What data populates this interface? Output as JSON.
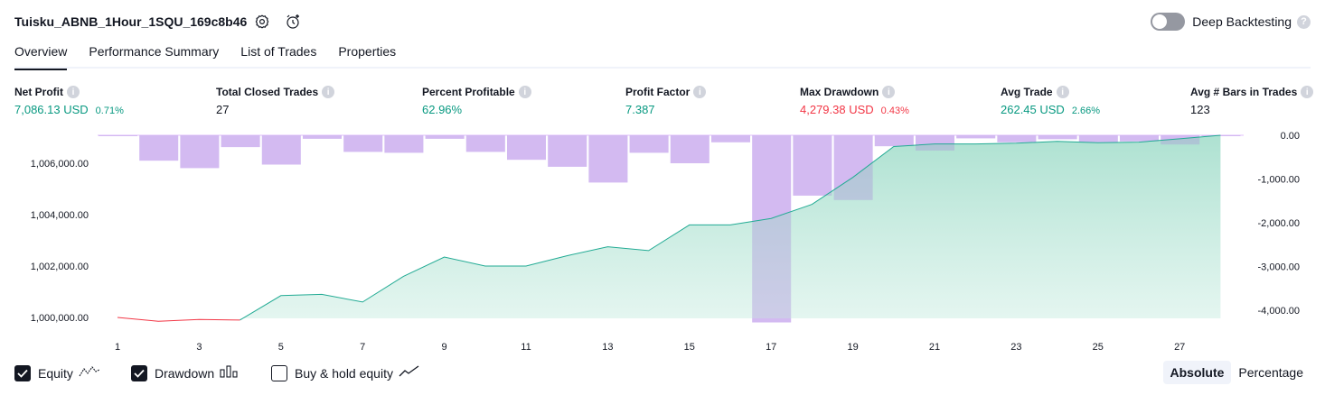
{
  "header": {
    "title": "Tuisku_ABNB_1Hour_1SQU_169c8b46",
    "settings_icon": "settings-gear-icon",
    "alert_icon": "add-alert-clock-icon",
    "deep_backtesting_label": "Deep Backtesting",
    "deep_backtesting_enabled": false,
    "help": "?"
  },
  "tabs": [
    {
      "label": "Overview",
      "active": true
    },
    {
      "label": "Performance Summary",
      "active": false
    },
    {
      "label": "List of Trades",
      "active": false
    },
    {
      "label": "Properties",
      "active": false
    }
  ],
  "metrics": [
    {
      "label": "Net Profit",
      "value": "7,086.13 USD",
      "pct": "0.71%",
      "tone": "pos"
    },
    {
      "label": "Total Closed Trades",
      "value": "27",
      "pct": "",
      "tone": "neu"
    },
    {
      "label": "Percent Profitable",
      "value": "62.96%",
      "pct": "",
      "tone": "pos"
    },
    {
      "label": "Profit Factor",
      "value": "7.387",
      "pct": "",
      "tone": "pos"
    },
    {
      "label": "Max Drawdown",
      "value": "4,279.38 USD",
      "pct": "0.43%",
      "tone": "neg"
    },
    {
      "label": "Avg Trade",
      "value": "262.45 USD",
      "pct": "2.66%",
      "tone": "pos"
    },
    {
      "label": "Avg # Bars in Trades",
      "value": "123",
      "pct": "",
      "tone": "neu"
    }
  ],
  "legend": {
    "equity_label": "Equity",
    "equity_checked": true,
    "drawdown_label": "Drawdown",
    "drawdown_checked": true,
    "buyhold_label": "Buy & hold equity",
    "buyhold_checked": false
  },
  "scale": {
    "absolute_label": "Absolute",
    "percentage_label": "Percentage",
    "active": "absolute"
  },
  "colors": {
    "equity_up": "#22ab94",
    "equity_down": "#f23645",
    "equity_fill": "#bfe9dd",
    "drawdown_bar": "#e1bffe"
  },
  "chart_data": {
    "type": "line",
    "x": [
      1,
      2,
      3,
      4,
      5,
      6,
      7,
      8,
      9,
      10,
      11,
      12,
      13,
      14,
      15,
      16,
      17,
      18,
      19,
      20,
      21,
      22,
      23,
      24,
      25,
      26,
      27,
      28
    ],
    "x_tick_labels": [
      "1",
      "3",
      "5",
      "7",
      "9",
      "11",
      "13",
      "15",
      "17",
      "19",
      "21",
      "23",
      "25",
      "27"
    ],
    "x_tick_values": [
      1,
      3,
      5,
      7,
      9,
      11,
      13,
      15,
      17,
      19,
      21,
      23,
      25,
      27
    ],
    "left_axis": {
      "ylim": [
        999500,
        1007100
      ],
      "tick_values": [
        1000000,
        1002000,
        1004000,
        1006000
      ],
      "tick_labels": [
        "1,000,000.00",
        "1,002,000.00",
        "1,004,000.00",
        "1,006,000.00"
      ]
    },
    "right_axis": {
      "ylim": [
        -4350,
        0
      ],
      "tick_values": [
        0,
        -1000,
        -2000,
        -3000,
        -4000
      ],
      "tick_labels": [
        "0.00",
        "-1,000.00",
        "-2,000.00",
        "-3,000.00",
        "-4,000.00"
      ]
    },
    "series": [
      {
        "name": "Equity",
        "values": [
          1000000,
          999850,
          999920,
          999900,
          1000850,
          1000900,
          1000600,
          1001600,
          1002350,
          1002000,
          1002000,
          1002400,
          1002750,
          1002600,
          1003600,
          1003600,
          1003850,
          1004400,
          1005450,
          1006650,
          1006750,
          1006750,
          1006780,
          1006850,
          1006800,
          1006820,
          1006950,
          1007086
        ]
      },
      {
        "name": "Drawdown",
        "values": [
          -20,
          -580,
          -750,
          -270,
          -670,
          -80,
          -380,
          -400,
          -80,
          -380,
          -560,
          -720,
          -1080,
          -400,
          -640,
          -160,
          -4279,
          -1380,
          -1480,
          -250,
          -350,
          -70,
          -160,
          -90,
          -160,
          -140,
          -210,
          -20
        ]
      }
    ]
  }
}
